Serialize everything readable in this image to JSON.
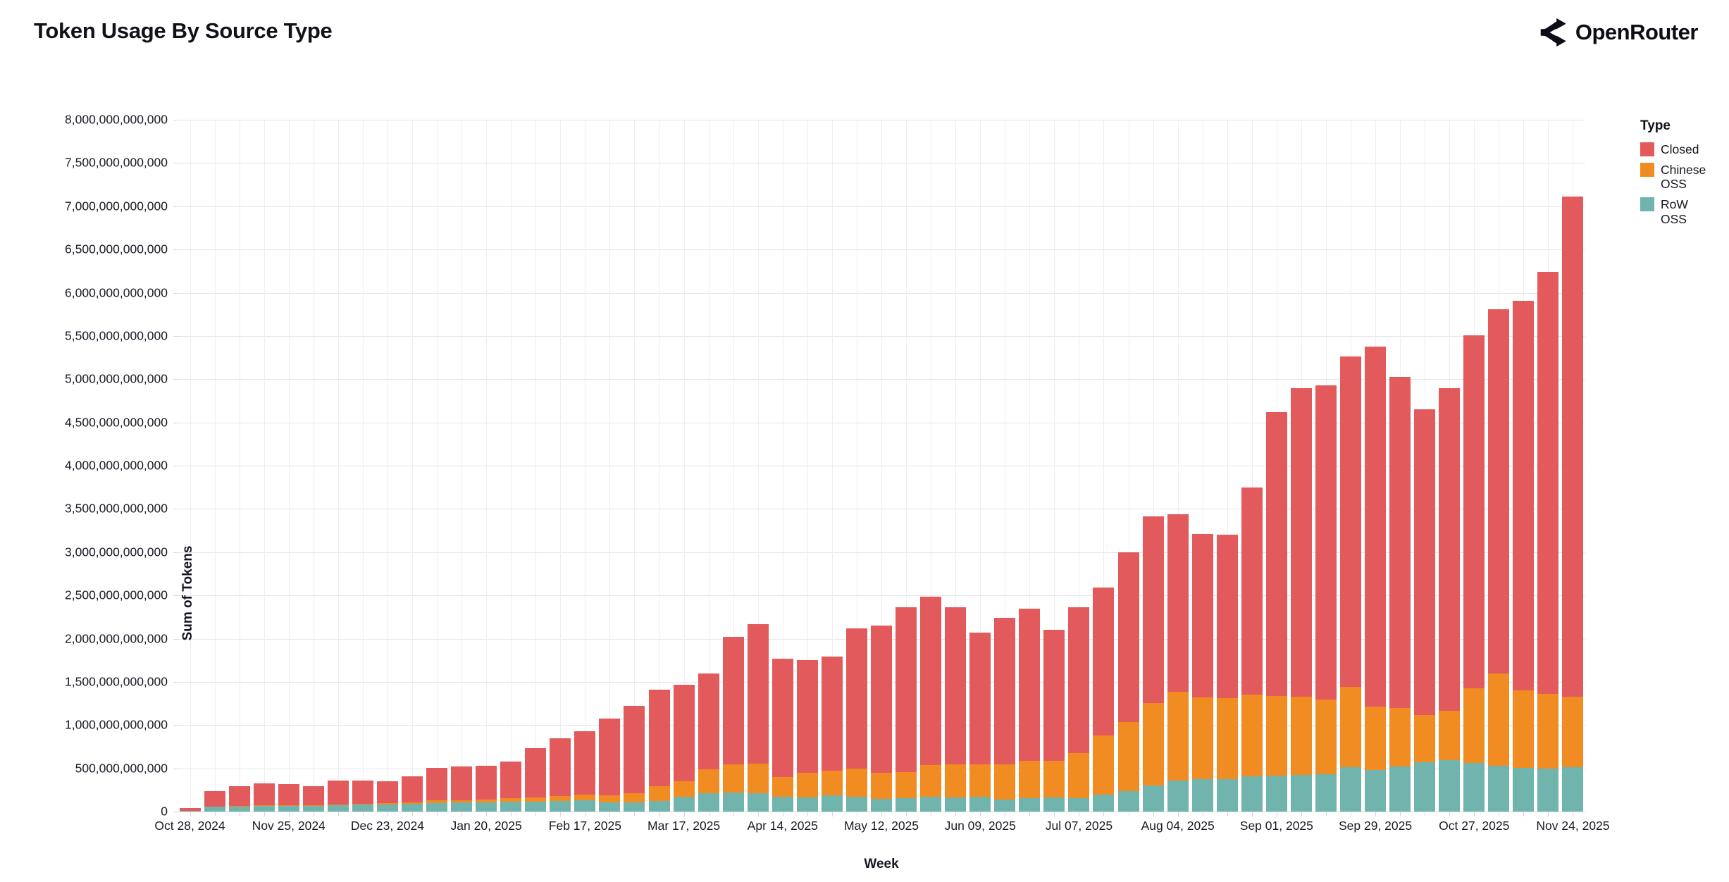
{
  "header": {
    "title": "Token Usage By Source Type",
    "brand": "OpenRouter"
  },
  "chart_data": {
    "type": "bar",
    "stacked": true,
    "title": "Token Usage By Source Type",
    "xlabel": "Week",
    "ylabel": "Sum of Tokens",
    "ylim": [
      0,
      8000000000000
    ],
    "y_tick_step": 500000000000,
    "grid": true,
    "unit_note": "series values are in billions of tokens",
    "ymax_billions": 8000,
    "y_tick_labels": [
      "0",
      "500,000,000,000",
      "1,000,000,000,000",
      "1,500,000,000,000",
      "2,000,000,000,000",
      "2,500,000,000,000",
      "3,000,000,000,000",
      "3,500,000,000,000",
      "4,000,000,000,000",
      "4,500,000,000,000",
      "5,000,000,000,000",
      "5,500,000,000,000",
      "6,000,000,000,000",
      "6,500,000,000,000",
      "7,000,000,000,000",
      "7,500,000,000,000",
      "8,000,000,000,000"
    ],
    "x_tick_every": 4,
    "x_tick_labels": [
      "Oct 28, 2024",
      "Nov 25, 2024",
      "Dec 23, 2024",
      "Jan 20, 2025",
      "Feb 17, 2025",
      "Mar 17, 2025",
      "Apr 14, 2025",
      "May 12, 2025",
      "Jun 09, 2025",
      "Jul 07, 2025",
      "Aug 04, 2025",
      "Sep 01, 2025",
      "Sep 29, 2025",
      "Oct 27, 2025",
      "Nov 24, 2025"
    ],
    "categories": [
      "Oct 28, 2024",
      "Nov 04, 2024",
      "Nov 11, 2024",
      "Nov 18, 2024",
      "Nov 25, 2024",
      "Dec 02, 2024",
      "Dec 09, 2024",
      "Dec 16, 2024",
      "Dec 23, 2024",
      "Dec 30, 2024",
      "Jan 06, 2025",
      "Jan 13, 2025",
      "Jan 20, 2025",
      "Jan 27, 2025",
      "Feb 03, 2025",
      "Feb 10, 2025",
      "Feb 17, 2025",
      "Feb 24, 2025",
      "Mar 03, 2025",
      "Mar 10, 2025",
      "Mar 17, 2025",
      "Mar 24, 2025",
      "Mar 31, 2025",
      "Apr 07, 2025",
      "Apr 14, 2025",
      "Apr 21, 2025",
      "Apr 28, 2025",
      "May 05, 2025",
      "May 12, 2025",
      "May 19, 2025",
      "May 26, 2025",
      "Jun 02, 2025",
      "Jun 09, 2025",
      "Jun 16, 2025",
      "Jun 23, 2025",
      "Jun 30, 2025",
      "Jul 07, 2025",
      "Jul 14, 2025",
      "Jul 21, 2025",
      "Jul 28, 2025",
      "Aug 04, 2025",
      "Aug 11, 2025",
      "Aug 18, 2025",
      "Aug 25, 2025",
      "Sep 01, 2025",
      "Sep 08, 2025",
      "Sep 15, 2025",
      "Sep 22, 2025",
      "Sep 29, 2025",
      "Oct 06, 2025",
      "Oct 13, 2025",
      "Oct 20, 2025",
      "Oct 27, 2025",
      "Nov 03, 2025",
      "Nov 10, 2025",
      "Nov 17, 2025",
      "Nov 24, 2025"
    ],
    "series": [
      {
        "name": "RoW OSS",
        "color": "#70B4AD",
        "values_billions": [
          5,
          55,
          61,
          63,
          66,
          69,
          71,
          80,
          85,
          90,
          100,
          105,
          106,
          112,
          117,
          122,
          128,
          108,
          110,
          126,
          172,
          213,
          221,
          208,
          170,
          167,
          186,
          175,
          148,
          153,
          175,
          167,
          175,
          139,
          153,
          167,
          153,
          194,
          235,
          303,
          358,
          372,
          372,
          410,
          415,
          423,
          432,
          511,
          484,
          519,
          568,
          593,
          560,
          527,
          505,
          495,
          515
        ]
      },
      {
        "name": "Chinese OSS",
        "color": "#F08C21",
        "values_billions": [
          2,
          3,
          5,
          7,
          8,
          8,
          10,
          12,
          14,
          18,
          27,
          28,
          32,
          45,
          48,
          59,
          64,
          80,
          100,
          169,
          178,
          273,
          325,
          347,
          228,
          281,
          289,
          320,
          300,
          306,
          361,
          382,
          374,
          410,
          432,
          423,
          527,
          683,
          801,
          948,
          1025,
          950,
          942,
          940,
          924,
          902,
          860,
          929,
          732,
          675,
          547,
          574,
          869,
          1071,
          900,
          865,
          815
        ]
      },
      {
        "name": "Closed",
        "color": "#E25A5C",
        "values_billions": [
          33,
          180,
          229,
          259,
          246,
          216,
          279,
          265,
          252,
          299,
          378,
          388,
          389,
          423,
          565,
          664,
          739,
          888,
          1009,
          1115,
          1114,
          1115,
          1474,
          1610,
          1370,
          1303,
          1317,
          1620,
          1700,
          1907,
          1953,
          1812,
          1524,
          1691,
          1762,
          1510,
          1681,
          1717,
          1959,
          2163,
          2052,
          1886,
          1885,
          2400,
          3281,
          3575,
          3638,
          3820,
          4164,
          3836,
          3535,
          3733,
          4081,
          4212,
          4505,
          4880,
          5780
        ]
      }
    ],
    "legend": {
      "title": "Type",
      "position": "right",
      "entries": [
        {
          "label": "Closed",
          "color": "#E25A5C"
        },
        {
          "label": "Chinese OSS",
          "color": "#F08C21"
        },
        {
          "label": "RoW OSS",
          "color": "#70B4AD"
        }
      ]
    }
  },
  "colors": {
    "background": "#ffffff",
    "grid_horizontal": "#e4e4ec",
    "grid_vertical": "#ededf3",
    "axis_text": "#1a1b26",
    "title_text": "#10111b"
  }
}
